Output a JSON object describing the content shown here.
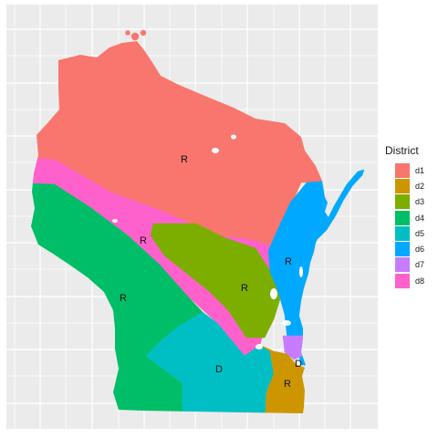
{
  "map": {
    "legend_title": "District",
    "districts": [
      {
        "key": "d1",
        "color": "#F8766D",
        "party": "R"
      },
      {
        "key": "d2",
        "color": "#CD9600",
        "party": "R"
      },
      {
        "key": "d3",
        "color": "#7CAE00",
        "party": "R"
      },
      {
        "key": "d4",
        "color": "#00BE67",
        "party": "R"
      },
      {
        "key": "d5",
        "color": "#00BFC4",
        "party": "D"
      },
      {
        "key": "d6",
        "color": "#00A9FF",
        "party": "R"
      },
      {
        "key": "d7",
        "color": "#C77CFF",
        "party": "D"
      },
      {
        "key": "d8",
        "color": "#FF61CC",
        "party": "R"
      }
    ],
    "background_color": "#EBEBEB",
    "grid_color": "#FFFFFF"
  }
}
